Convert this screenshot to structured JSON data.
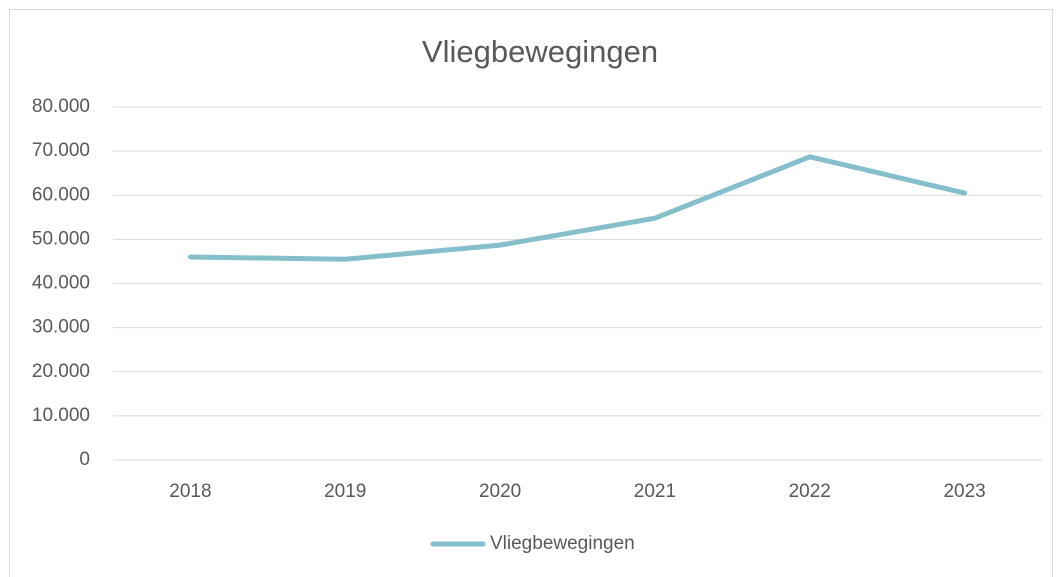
{
  "chart_data": {
    "type": "line",
    "title": "Vliegbewegingen",
    "categories": [
      "2018",
      "2019",
      "2020",
      "2021",
      "2022",
      "2023"
    ],
    "series": [
      {
        "name": "Vliegbewegingen",
        "color": "#84bfcb",
        "values": [
          46000,
          45500,
          48700,
          54800,
          68700,
          60500
        ]
      }
    ],
    "ylim": [
      0,
      80000
    ],
    "yticks": [
      0,
      {
        "value": 10000,
        "label": "10.000"
      },
      {
        "value": 20000,
        "label": "20.000"
      },
      {
        "value": 30000,
        "label": "30.000"
      },
      {
        "value": 40000,
        "label": "40.000"
      },
      {
        "value": 50000,
        "label": "50.000"
      },
      {
        "value": 60000,
        "label": "60.000"
      },
      {
        "value": 70000,
        "label": "70.000"
      },
      {
        "value": 80000,
        "label": "80.000"
      }
    ],
    "grid": true,
    "legend": "bottom"
  }
}
